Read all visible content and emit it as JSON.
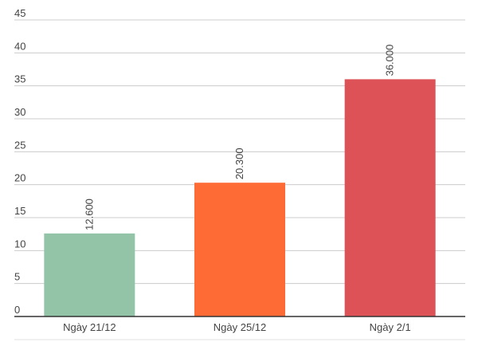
{
  "chart_data": {
    "type": "bar",
    "categories": [
      "Ngày 21/12",
      "Ngày 25/12",
      "Ngày 2/1"
    ],
    "values": [
      12.6,
      20.3,
      36.0
    ],
    "data_labels": [
      "12.600",
      "20.300",
      "36.000"
    ],
    "bar_colors": [
      "#93c4a8",
      "#ff6b35",
      "#dc5257"
    ],
    "ylim": [
      0,
      45
    ],
    "yticks": [
      0,
      5,
      10,
      15,
      20,
      25,
      30,
      35,
      40,
      45
    ],
    "ytick_labels": [
      "0",
      "5",
      "10",
      "15",
      "20",
      "25",
      "30",
      "35",
      "40",
      "45"
    ],
    "grid": true,
    "legend": "none",
    "title": "",
    "xlabel": "",
    "ylabel": ""
  }
}
